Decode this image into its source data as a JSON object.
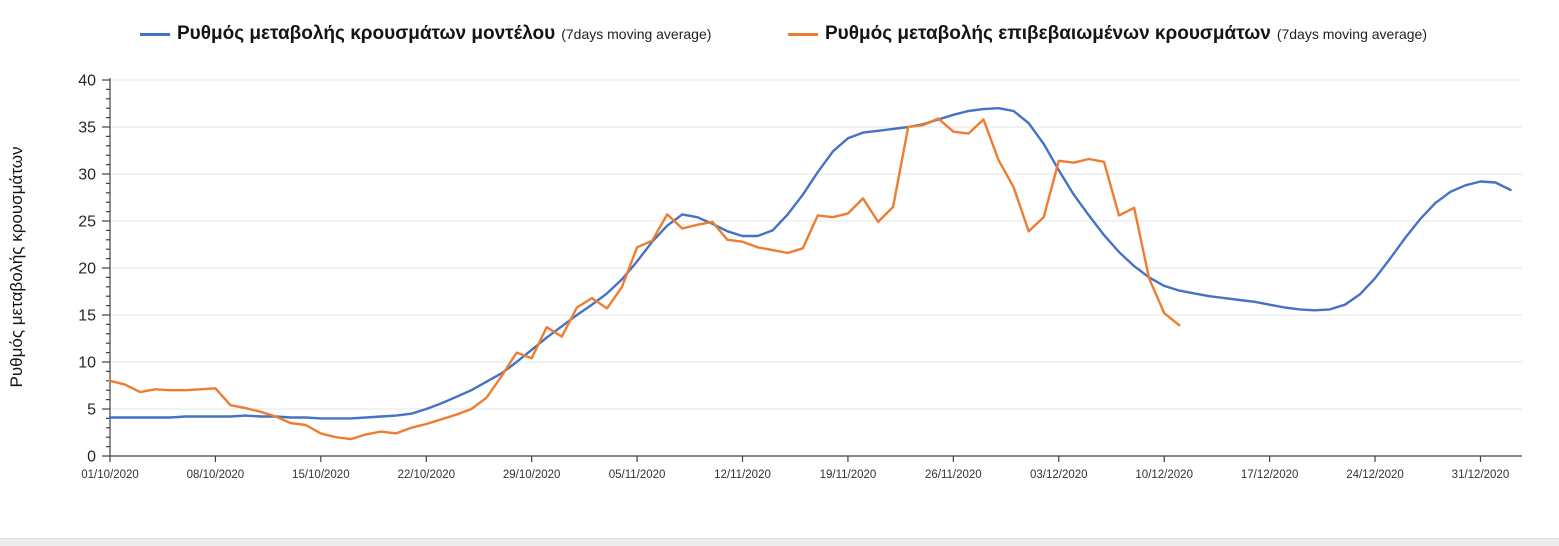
{
  "legend": [
    {
      "label": "Ρυθμός μεταβολής κρουσμάτων μοντέλου",
      "suffix": "(7days moving average)",
      "color": "#4472c4"
    },
    {
      "label": "Ρυθμός μεταβολής επιβεβαιωμένων κρουσμάτων",
      "suffix": "(7days moving average)",
      "color": "#ed7d31"
    }
  ],
  "chart_data": {
    "type": "line",
    "title": "",
    "xlabel": "",
    "ylabel": "Ρυθμός μεταβολής κρουσμάτων",
    "ylim": [
      0,
      40
    ],
    "y_major_ticks": [
      0,
      5,
      10,
      15,
      20,
      25,
      30,
      35,
      40
    ],
    "y_minor_tick_step": 1,
    "grid": "horizontal-only",
    "gridline_color": "#e4e4e4",
    "axis_color": "#404040",
    "legend_position": "top",
    "x_tick_interval_days": 7,
    "x_tick_labels": [
      "01/10/2020",
      "08/10/2020",
      "15/10/2020",
      "22/10/2020",
      "29/10/2020",
      "05/11/2020",
      "12/11/2020",
      "19/11/2020",
      "26/11/2020",
      "03/12/2020",
      "10/12/2020",
      "17/12/2020",
      "24/12/2020",
      "31/12/2020"
    ],
    "frequency": "daily",
    "series": [
      {
        "name": "Ρυθμός μεταβολής κρουσμάτων μοντέλου (7days moving average)",
        "color": "#4472c4",
        "start_date": "01/10/2020",
        "values": [
          4.1,
          4.1,
          4.1,
          4.1,
          4.1,
          4.2,
          4.2,
          4.2,
          4.2,
          4.3,
          4.2,
          4.2,
          4.1,
          4.1,
          4.0,
          4.0,
          4.0,
          4.1,
          4.2,
          4.3,
          4.5,
          5.0,
          5.6,
          6.3,
          7.0,
          7.9,
          8.8,
          10.0,
          11.3,
          12.6,
          13.8,
          15.0,
          16.1,
          17.3,
          18.8,
          20.7,
          22.8,
          24.5,
          25.7,
          25.4,
          24.7,
          23.9,
          23.4,
          23.4,
          24.0,
          25.7,
          27.8,
          30.2,
          32.4,
          33.8,
          34.4,
          34.6,
          34.8,
          35.0,
          35.3,
          35.8,
          36.3,
          36.7,
          36.9,
          37.0,
          36.7,
          35.4,
          33.2,
          30.4,
          27.8,
          25.6,
          23.5,
          21.7,
          20.2,
          19.0,
          18.1,
          17.6,
          17.3,
          17.0,
          16.8,
          16.6,
          16.4,
          16.1,
          15.8,
          15.6,
          15.5,
          15.6,
          16.1,
          17.2,
          18.9,
          21.0,
          23.2,
          25.2,
          26.9,
          28.1,
          28.8,
          29.2,
          29.1,
          28.3
        ]
      },
      {
        "name": "Ρυθμός μεταβολής επιβεβαιωμένων κρουσμάτων (7days moving average)",
        "color": "#ed7d31",
        "start_date": "01/10/2020",
        "values": [
          8.0,
          7.6,
          6.8,
          7.1,
          7.0,
          7.0,
          7.1,
          7.2,
          5.4,
          5.1,
          4.7,
          4.2,
          3.5,
          3.3,
          2.4,
          2.0,
          1.8,
          2.3,
          2.6,
          2.4,
          3.0,
          3.4,
          3.9,
          4.4,
          5.0,
          6.2,
          8.5,
          11.0,
          10.4,
          13.7,
          12.7,
          15.8,
          16.8,
          15.7,
          18.0,
          22.2,
          22.9,
          25.7,
          24.2,
          24.6,
          24.9,
          23.0,
          22.8,
          22.2,
          21.9,
          21.6,
          22.1,
          25.6,
          25.4,
          25.8,
          27.4,
          24.9,
          26.5,
          35.0,
          35.2,
          35.9,
          34.5,
          34.3,
          35.8,
          31.5,
          28.6,
          23.9,
          25.4,
          31.4,
          31.2,
          31.6,
          31.3,
          25.6,
          26.4,
          18.9,
          15.2,
          13.9
        ]
      }
    ]
  }
}
